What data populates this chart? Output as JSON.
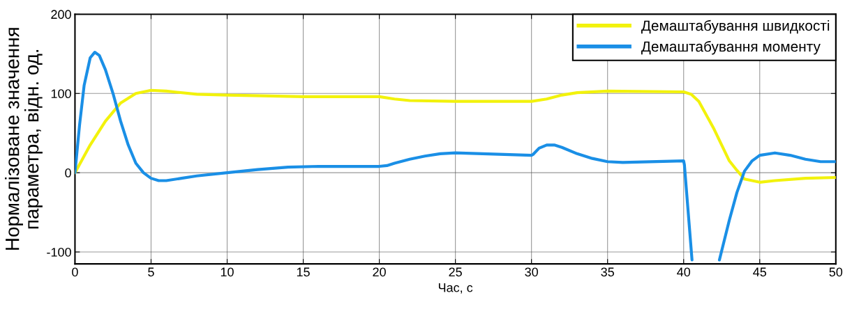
{
  "chart_data": {
    "type": "line",
    "xlabel": "Час, с",
    "ylabel": "Нормалізоване значення\nпараметра, відн. од.",
    "xlim": [
      0,
      50
    ],
    "xticks": [
      0,
      5,
      10,
      15,
      20,
      25,
      30,
      35,
      40,
      45,
      50
    ],
    "ylim": [
      -115,
      200
    ],
    "yticks": [
      -100,
      0,
      100,
      200
    ],
    "grid": true,
    "legend": "top right",
    "line_style": "solid",
    "series": [
      {
        "name": "Демаштабування швидкості",
        "color": "#f2f20c",
        "x": [
          0,
          1,
          2,
          3,
          4,
          5,
          6,
          8,
          10,
          15,
          20,
          21,
          22,
          25,
          30,
          31,
          32,
          33,
          35,
          40,
          40.5,
          41,
          42,
          42.5,
          43,
          43.5,
          44,
          45,
          46,
          48,
          50
        ],
        "values": [
          0,
          35,
          65,
          88,
          100,
          104,
          103,
          99,
          98,
          96,
          96,
          93,
          91,
          90,
          90,
          93,
          98,
          101,
          103,
          102,
          99,
          90,
          55,
          35,
          15,
          3,
          -8,
          -12,
          -10,
          -7,
          -6
        ]
      },
      {
        "name": "Демаштабування моменту",
        "color": "#1a8fe6",
        "x": [
          0,
          0.3,
          0.6,
          1,
          1.3,
          1.6,
          2,
          2.5,
          3,
          3.5,
          4,
          4.5,
          5,
          5.5,
          6,
          7,
          8,
          10,
          12,
          14,
          16,
          20,
          20.5,
          21,
          22,
          23,
          24,
          25,
          30,
          30.1,
          30.5,
          31,
          31.5,
          32,
          33,
          34,
          35,
          36,
          40,
          40.05,
          40.55,
          41.5,
          42.35,
          43,
          43.5,
          44,
          44.5,
          45,
          46,
          47,
          48,
          49,
          50
        ],
        "values": [
          0,
          60,
          110,
          145,
          152,
          148,
          130,
          100,
          65,
          35,
          12,
          0,
          -7,
          -10,
          -10,
          -7,
          -4,
          0,
          4,
          7,
          8,
          8,
          9,
          12,
          17,
          21,
          24,
          25,
          22,
          23,
          31,
          35,
          35,
          32,
          24,
          18,
          14,
          13,
          15,
          10,
          -110,
          null,
          -110,
          -60,
          -25,
          2,
          15,
          22,
          25,
          22,
          17,
          14,
          14
        ]
      }
    ]
  }
}
